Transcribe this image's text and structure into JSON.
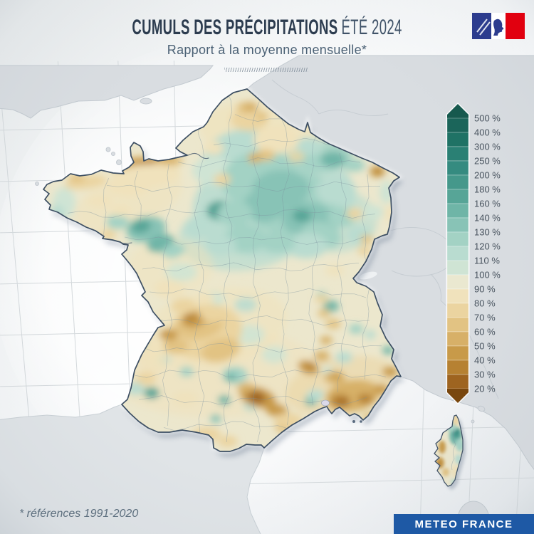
{
  "header": {
    "title_main": "CUMULS DES PRÉCIPITATIONS",
    "title_year": "ÉTÉ 2024",
    "subtitle": "Rapport à la moyenne mensuelle*"
  },
  "footer": {
    "reference_note": "* références 1991-2020",
    "brand": "METEO FRANCE",
    "brand_bg": "#1e59a5"
  },
  "logo": {
    "name": "republique-francaise-flag",
    "blue": "#2c3c8e",
    "white": "#ffffff",
    "red": "#e1000f"
  },
  "legend": {
    "unit": "%",
    "labels": [
      "500 %",
      "400 %",
      "300 %",
      "250 %",
      "200 %",
      "180 %",
      "160 %",
      "140 %",
      "130 %",
      "120 %",
      "110 %",
      "100 %",
      "90 %",
      "80 %",
      "70 %",
      "60 %",
      "50 %",
      "40 %",
      "30 %",
      "20 %"
    ],
    "colors": [
      "#17594e",
      "#1b655a",
      "#1f7265",
      "#2a8074",
      "#358b80",
      "#45988b",
      "#57a597",
      "#6fb5a7",
      "#88c3b6",
      "#a3d2c4",
      "#b9dcd0",
      "#cfe4d4",
      "#eae8d0",
      "#f0e2bc",
      "#ebd4a0",
      "#e2c383",
      "#d7b068",
      "#c89a49",
      "#b68132",
      "#9e6420",
      "#79470e"
    ]
  },
  "map": {
    "base_color": "#ece7cd",
    "sea_color": "#f4f6f7",
    "neighbor_color": "#d9dde1",
    "outline_color": "#3d4f63",
    "palette": {
      "T0": "#cfe4d4",
      "T1": "#b9dcd0",
      "T2": "#a3d2c4",
      "T3": "#88c3b6",
      "T4": "#6fb5a7",
      "T5": "#57a597",
      "T6": "#45988b",
      "T7": "#358b80",
      "B1": "#f0e2bc",
      "B2": "#ebd4a0",
      "B3": "#e2c383",
      "B4": "#d7b068",
      "B5": "#c89a49",
      "B6": "#b68132",
      "B7": "#9e6420"
    },
    "blobs": [
      [
        370,
        180,
        90,
        40,
        0,
        "B1",
        0.7
      ],
      [
        180,
        282,
        80,
        38,
        -20,
        "B1",
        0.55
      ],
      [
        385,
        285,
        115,
        75,
        -8,
        "T1",
        0.9
      ],
      [
        340,
        330,
        90,
        50,
        -5,
        "T1",
        0.75
      ],
      [
        470,
        310,
        60,
        45,
        0,
        "T1",
        0.65
      ],
      [
        455,
        220,
        42,
        22,
        -12,
        "T2",
        0.9
      ],
      [
        300,
        462,
        105,
        55,
        -12,
        "B1",
        0.6
      ],
      [
        300,
        522,
        150,
        65,
        0,
        "B1",
        0.5
      ],
      [
        480,
        542,
        80,
        40,
        -12,
        "B2",
        0.55
      ],
      [
        240,
        375,
        60,
        40,
        0,
        "B1",
        0.45
      ],
      [
        335,
        215,
        50,
        32,
        -15,
        "T1",
        1
      ],
      [
        300,
        240,
        30,
        20,
        0,
        "T0",
        1
      ],
      [
        365,
        250,
        55,
        38,
        -10,
        "T2",
        1
      ],
      [
        410,
        285,
        65,
        45,
        0,
        "T2",
        1
      ],
      [
        395,
        265,
        40,
        26,
        0,
        "T3",
        1
      ],
      [
        435,
        310,
        40,
        26,
        10,
        "T3",
        1
      ],
      [
        370,
        290,
        30,
        22,
        0,
        "T3",
        1
      ],
      [
        310,
        296,
        20,
        14,
        0,
        "T5",
        1
      ],
      [
        311,
        295,
        9,
        7,
        0,
        "T7",
        1
      ],
      [
        424,
        303,
        13,
        9,
        0,
        "T5",
        1
      ],
      [
        452,
        330,
        28,
        18,
        15,
        "T2",
        1
      ],
      [
        472,
        268,
        28,
        20,
        0,
        "T1",
        1
      ],
      [
        505,
        330,
        18,
        13,
        0,
        "T1",
        1
      ],
      [
        525,
        298,
        14,
        10,
        0,
        "T0",
        1
      ],
      [
        543,
        270,
        10,
        16,
        0,
        "T0",
        1
      ],
      [
        480,
        305,
        20,
        14,
        0,
        "T2",
        1
      ],
      [
        430,
        345,
        30,
        18,
        0,
        "T1",
        1
      ],
      [
        390,
        340,
        25,
        15,
        0,
        "T2",
        1
      ],
      [
        345,
        335,
        30,
        20,
        0,
        "T2",
        1
      ],
      [
        310,
        345,
        22,
        14,
        0,
        "T1",
        1
      ],
      [
        278,
        320,
        20,
        14,
        0,
        "T1",
        1
      ],
      [
        330,
        300,
        25,
        18,
        0,
        "T2",
        1
      ],
      [
        468,
        224,
        18,
        11,
        0,
        "T4",
        1
      ],
      [
        497,
        232,
        16,
        9,
        0,
        "T2",
        1
      ],
      [
        435,
        205,
        20,
        12,
        0,
        "T1",
        1
      ],
      [
        205,
        322,
        28,
        18,
        -10,
        "T3",
        1
      ],
      [
        198,
        318,
        14,
        9,
        -10,
        "T5",
        1
      ],
      [
        226,
        342,
        20,
        12,
        -15,
        "T4",
        1
      ],
      [
        244,
        352,
        16,
        10,
        -15,
        "T2",
        1
      ],
      [
        165,
        312,
        16,
        10,
        0,
        "T2",
        1
      ],
      [
        90,
        285,
        16,
        22,
        0,
        "T0",
        1
      ],
      [
        80,
        300,
        10,
        12,
        0,
        "T1",
        1
      ],
      [
        255,
        382,
        22,
        13,
        0,
        "T0",
        0.9
      ],
      [
        300,
        420,
        16,
        10,
        0,
        "T0",
        0.9
      ],
      [
        350,
        470,
        22,
        14,
        0,
        "T0",
        0.9
      ],
      [
        385,
        498,
        18,
        12,
        0,
        "T0",
        0.9
      ],
      [
        330,
        527,
        18,
        12,
        0,
        "T2",
        1
      ],
      [
        324,
        530,
        8,
        6,
        0,
        "T4",
        1
      ],
      [
        315,
        562,
        9,
        7,
        0,
        "T4",
        1
      ],
      [
        303,
        588,
        8,
        6,
        0,
        "T3",
        1
      ],
      [
        352,
        570,
        10,
        7,
        0,
        "T1",
        1
      ],
      [
        213,
        552,
        11,
        8,
        0,
        "T5",
        1
      ],
      [
        190,
        546,
        13,
        9,
        0,
        "T1",
        1
      ],
      [
        196,
        480,
        9,
        7,
        0,
        "T3",
        1
      ],
      [
        230,
        505,
        10,
        7,
        0,
        "T1",
        1
      ],
      [
        262,
        522,
        10,
        7,
        0,
        "T2",
        1
      ],
      [
        345,
        428,
        16,
        10,
        0,
        "T1",
        0.9
      ],
      [
        465,
        430,
        11,
        8,
        0,
        "T4",
        1
      ],
      [
        452,
        415,
        8,
        6,
        0,
        "T2",
        1
      ],
      [
        500,
        462,
        10,
        7,
        0,
        "T2",
        1
      ],
      [
        545,
        492,
        8,
        6,
        0,
        "T4",
        1
      ],
      [
        483,
        502,
        12,
        8,
        0,
        "T1",
        1
      ],
      [
        520,
        470,
        8,
        6,
        0,
        "T1",
        1
      ],
      [
        437,
        563,
        9,
        7,
        0,
        "T4",
        1
      ],
      [
        443,
        555,
        12,
        8,
        0,
        "T1",
        1
      ],
      [
        460,
        520,
        8,
        6,
        0,
        "T0",
        1
      ],
      [
        350,
        168,
        26,
        16,
        0,
        "B2",
        1
      ],
      [
        345,
        151,
        13,
        8,
        0,
        "B3",
        1
      ],
      [
        388,
        196,
        32,
        20,
        0,
        "B1",
        1
      ],
      [
        373,
        218,
        13,
        8,
        0,
        "B3",
        1
      ],
      [
        358,
        222,
        10,
        7,
        0,
        "B4",
        1
      ],
      [
        416,
        220,
        12,
        8,
        0,
        "B2",
        0.8
      ],
      [
        312,
        252,
        12,
        8,
        0,
        "B2",
        1
      ],
      [
        300,
        208,
        14,
        9,
        0,
        "B1",
        1
      ],
      [
        352,
        150,
        10,
        7,
        0,
        "B4",
        1
      ],
      [
        368,
        163,
        9,
        6,
        0,
        "B3",
        1
      ],
      [
        206,
        230,
        52,
        12,
        -6,
        "B3",
        1
      ],
      [
        188,
        230,
        22,
        7,
        -6,
        "B5",
        1
      ],
      [
        208,
        228,
        12,
        5,
        -6,
        "B6",
        1
      ],
      [
        232,
        224,
        16,
        7,
        0,
        "B4",
        1
      ],
      [
        205,
        247,
        50,
        16,
        -5,
        "B1",
        1
      ],
      [
        180,
        262,
        30,
        14,
        0,
        "B1",
        1
      ],
      [
        120,
        256,
        30,
        9,
        -8,
        "B2",
        1
      ],
      [
        108,
        250,
        12,
        6,
        0,
        "B3",
        1
      ],
      [
        140,
        282,
        18,
        9,
        0,
        "B1",
        1
      ],
      [
        152,
        330,
        11,
        7,
        0,
        "B2",
        1
      ],
      [
        170,
        296,
        14,
        8,
        0,
        "B1",
        1
      ],
      [
        530,
        241,
        11,
        8,
        0,
        "B5",
        1
      ],
      [
        531,
        240,
        5,
        4,
        0,
        "B6",
        1
      ],
      [
        498,
        300,
        11,
        8,
        0,
        "B2",
        1
      ],
      [
        515,
        336,
        9,
        6,
        0,
        "B3",
        1
      ],
      [
        548,
        300,
        8,
        12,
        0,
        "B1",
        1
      ],
      [
        470,
        380,
        14,
        8,
        0,
        "B1",
        0.9
      ],
      [
        512,
        352,
        10,
        7,
        0,
        "B2",
        1
      ],
      [
        238,
        406,
        22,
        13,
        0,
        "B1",
        1
      ],
      [
        258,
        430,
        18,
        11,
        0,
        "B2",
        1
      ],
      [
        288,
        420,
        13,
        8,
        0,
        "B1",
        1
      ],
      [
        288,
        466,
        52,
        38,
        -10,
        "B2",
        1
      ],
      [
        280,
        456,
        34,
        20,
        -10,
        "B3",
        1
      ],
      [
        272,
        449,
        17,
        11,
        -10,
        "B5",
        1
      ],
      [
        266,
        446,
        8,
        5,
        0,
        "B6",
        1
      ],
      [
        310,
        492,
        28,
        16,
        -15,
        "B3",
        1
      ],
      [
        247,
        486,
        18,
        11,
        0,
        "B3",
        1
      ],
      [
        237,
        470,
        13,
        8,
        0,
        "B5",
        1
      ],
      [
        300,
        440,
        20,
        12,
        0,
        "B2",
        1
      ],
      [
        215,
        505,
        20,
        24,
        0,
        "B1",
        0.8
      ],
      [
        205,
        532,
        14,
        9,
        0,
        "B2",
        1
      ],
      [
        260,
        560,
        18,
        10,
        0,
        "B1",
        0.9
      ],
      [
        290,
        610,
        20,
        10,
        0,
        "B2",
        1
      ],
      [
        320,
        620,
        14,
        8,
        0,
        "B2",
        1
      ],
      [
        362,
        558,
        26,
        14,
        15,
        "B5",
        1
      ],
      [
        360,
        558,
        13,
        8,
        15,
        "B7",
        1
      ],
      [
        388,
        576,
        16,
        9,
        10,
        "B5",
        1
      ],
      [
        346,
        545,
        13,
        7,
        0,
        "B4",
        1
      ],
      [
        398,
        600,
        12,
        8,
        0,
        "B3",
        1
      ],
      [
        422,
        618,
        13,
        9,
        0,
        "B4",
        1
      ],
      [
        426,
        620,
        6,
        4,
        0,
        "B5",
        1
      ],
      [
        405,
        590,
        20,
        10,
        0,
        "B2",
        1
      ],
      [
        433,
        516,
        15,
        9,
        20,
        "B5",
        1
      ],
      [
        436,
        514,
        7,
        5,
        0,
        "B6",
        1
      ],
      [
        452,
        500,
        11,
        7,
        0,
        "B4",
        1
      ],
      [
        458,
        478,
        9,
        6,
        0,
        "B4",
        1
      ],
      [
        468,
        455,
        11,
        7,
        0,
        "B3",
        1
      ],
      [
        455,
        440,
        9,
        6,
        0,
        "B3",
        1
      ],
      [
        452,
        420,
        10,
        6,
        0,
        "B2",
        1
      ],
      [
        495,
        556,
        38,
        22,
        -10,
        "B4",
        1
      ],
      [
        478,
        563,
        14,
        9,
        0,
        "B6",
        1
      ],
      [
        482,
        565,
        7,
        4,
        0,
        "B7",
        1
      ],
      [
        513,
        560,
        11,
        7,
        0,
        "B6",
        1
      ],
      [
        535,
        547,
        11,
        7,
        0,
        "B5",
        1
      ],
      [
        470,
        530,
        15,
        9,
        0,
        "B4",
        1
      ],
      [
        472,
        528,
        6,
        4,
        0,
        "B5",
        1
      ],
      [
        548,
        522,
        11,
        7,
        0,
        "B5",
        1
      ],
      [
        520,
        585,
        12,
        6,
        0,
        "B3",
        1
      ]
    ],
    "corsica_blobs": [
      [
        640,
        612,
        9,
        13,
        0,
        "T4",
        1
      ],
      [
        641,
        609,
        5,
        7,
        0,
        "T6",
        1
      ],
      [
        642,
        606,
        3,
        4,
        0,
        "T7",
        1
      ],
      [
        646,
        625,
        6,
        9,
        0,
        "T2",
        1
      ],
      [
        634,
        600,
        8,
        6,
        0,
        "T2",
        1
      ],
      [
        640,
        590,
        4,
        8,
        0,
        "B2",
        1
      ],
      [
        621,
        628,
        5,
        9,
        0,
        "B5",
        1
      ],
      [
        618,
        650,
        6,
        8,
        0,
        "B5",
        1
      ],
      [
        617,
        652,
        3,
        4,
        0,
        "B6",
        1
      ],
      [
        626,
        663,
        5,
        6,
        0,
        "B3",
        1
      ],
      [
        641,
        662,
        7,
        9,
        0,
        "B1",
        1
      ],
      [
        638,
        677,
        5,
        4,
        0,
        "T1",
        1
      ],
      [
        644,
        645,
        5,
        7,
        0,
        "T1",
        1
      ]
    ]
  }
}
